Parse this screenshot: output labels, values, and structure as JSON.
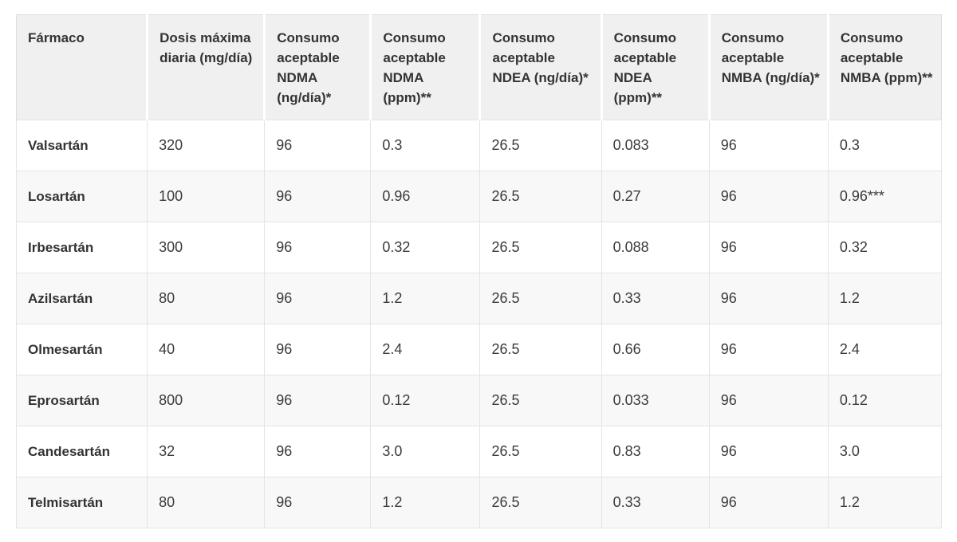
{
  "table": {
    "headers": [
      "Fármaco",
      "Dosis máxima diaria (mg/día)",
      "Consumo aceptable NDMA (ng/día)*",
      "Consumo aceptable NDMA (ppm)**",
      "Consumo aceptable NDEA (ng/día)*",
      "Consumo aceptable NDEA (ppm)**",
      "Consumo aceptable NMBA (ng/día)*",
      "Consumo aceptable NMBA (ppm)**"
    ],
    "rows": [
      {
        "cells": [
          "Valsartán",
          "320",
          "96",
          "0.3",
          "26.5",
          "0.083",
          "96",
          "0.3"
        ]
      },
      {
        "cells": [
          "Losartán",
          "100",
          "96",
          "0.96",
          "26.5",
          "0.27",
          "96",
          "0.96***"
        ]
      },
      {
        "cells": [
          "Irbesartán",
          "300",
          "96",
          "0.32",
          "26.5",
          "0.088",
          "96",
          "0.32"
        ]
      },
      {
        "cells": [
          "Azilsartán",
          "80",
          "96",
          "1.2",
          "26.5",
          "0.33",
          "96",
          "1.2"
        ]
      },
      {
        "cells": [
          "Olmesartán",
          "40",
          "96",
          "2.4",
          "26.5",
          "0.66",
          "96",
          "2.4"
        ]
      },
      {
        "cells": [
          "Eprosartán",
          "800",
          "96",
          "0.12",
          "26.5",
          "0.033",
          "96",
          "0.12"
        ]
      },
      {
        "cells": [
          "Candesartán",
          "32",
          "96",
          "3.0",
          "26.5",
          "0.83",
          "96",
          "3.0"
        ]
      },
      {
        "cells": [
          "Telmisartán",
          "80",
          "96",
          "1.2",
          "26.5",
          "0.33",
          "96",
          "1.2"
        ]
      }
    ]
  },
  "colors": {
    "header_bg": "#f0f0f0",
    "stripe_bg": "#f8f8f8",
    "border": "#e4e4e4",
    "text": "#3b3b3b"
  }
}
